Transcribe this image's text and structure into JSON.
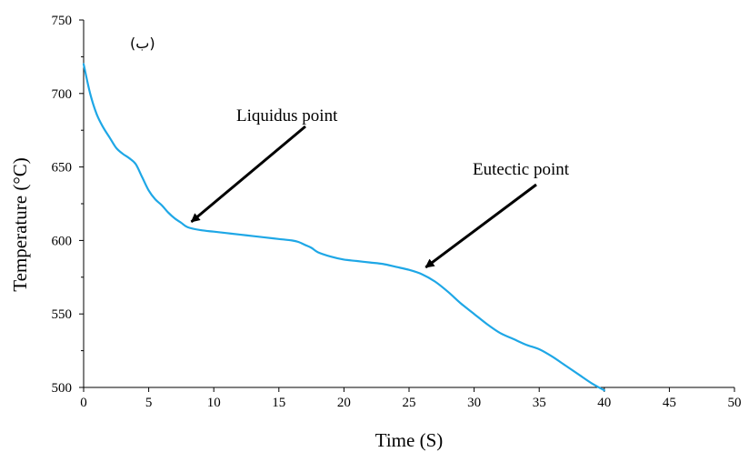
{
  "chart_data": {
    "type": "line",
    "title": "",
    "panel_label": "(ب)",
    "xlabel": "Time (S)",
    "ylabel": "Temperature (°C)",
    "xlim": [
      0,
      50
    ],
    "ylim": [
      500,
      750
    ],
    "x_ticks": [
      0,
      5,
      10,
      15,
      20,
      25,
      30,
      35,
      40,
      45,
      50
    ],
    "y_ticks": [
      500,
      550,
      600,
      650,
      700,
      750
    ],
    "grid": false,
    "colors": {
      "line": "#1ea7e6",
      "axis": "#000000"
    },
    "series": [
      {
        "x": [
          0,
          0.5,
          1,
          1.5,
          2,
          2.5,
          3,
          3.5,
          4,
          4.5,
          5,
          5.5,
          6,
          6.5,
          7,
          7.5,
          8,
          9,
          10,
          11,
          12,
          13,
          14,
          15,
          16,
          16.5,
          17,
          17.5,
          18,
          19,
          20,
          21,
          22,
          23,
          24,
          25,
          26,
          27,
          28,
          29,
          30,
          31,
          32,
          33,
          34,
          35,
          36,
          37,
          38,
          39,
          40
        ],
        "y": [
          720,
          700,
          686,
          677,
          670,
          663,
          659,
          656,
          652,
          643,
          634,
          628,
          624,
          619,
          615,
          612,
          609,
          607,
          606,
          605,
          604,
          603,
          602,
          601,
          600,
          599,
          597,
          595,
          592,
          589,
          587,
          586,
          585,
          584,
          582,
          580,
          577,
          572,
          565,
          557,
          550,
          543,
          537,
          533,
          529,
          526,
          521,
          515,
          509,
          503,
          498
        ]
      }
    ],
    "annotations": [
      {
        "text": "Liquidus point",
        "x": 8,
        "y": 609
      },
      {
        "text": "Eutectic point",
        "x": 26,
        "y": 578
      }
    ]
  }
}
